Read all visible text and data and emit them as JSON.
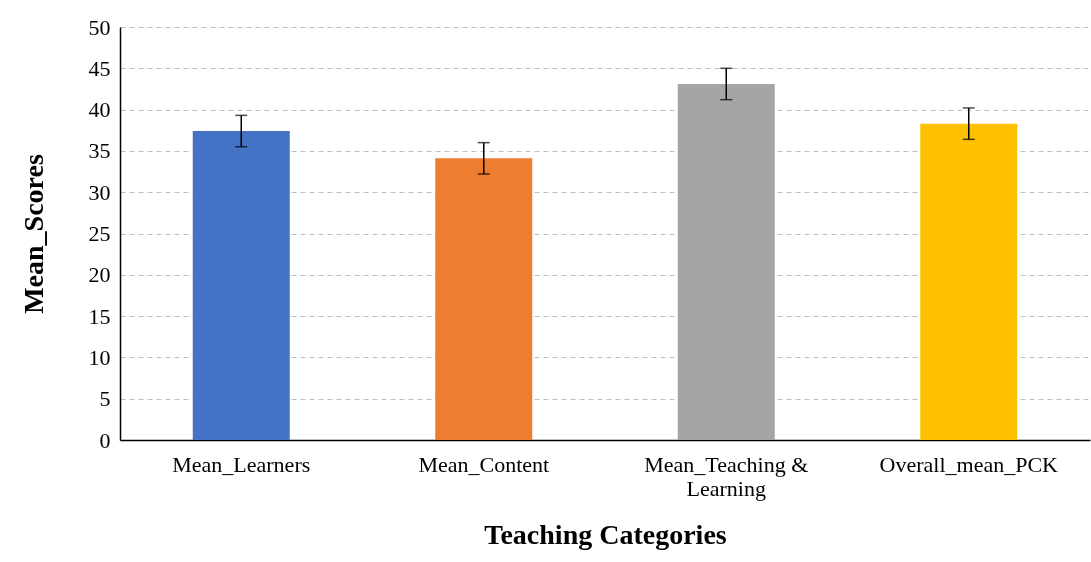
{
  "chart_data": {
    "type": "bar",
    "xlabel": "Teaching Categories",
    "ylabel": "Mean_Scores",
    "categories": [
      "Mean_Learners",
      "Mean_Content",
      "Mean_Teaching & Learning",
      "Overall_mean_PCK"
    ],
    "values": [
      37.4,
      34.1,
      43.1,
      38.3
    ],
    "colors": [
      "#4472c4",
      "#ed7d31",
      "#a5a5a5",
      "#ffc000"
    ],
    "errors": [
      1.9,
      1.9,
      1.9,
      1.9
    ],
    "ylim": [
      0,
      50
    ],
    "yticks": [
      0,
      5,
      10,
      15,
      20,
      25,
      30,
      35,
      40,
      45,
      50
    ],
    "grid": "y",
    "legend": false
  }
}
